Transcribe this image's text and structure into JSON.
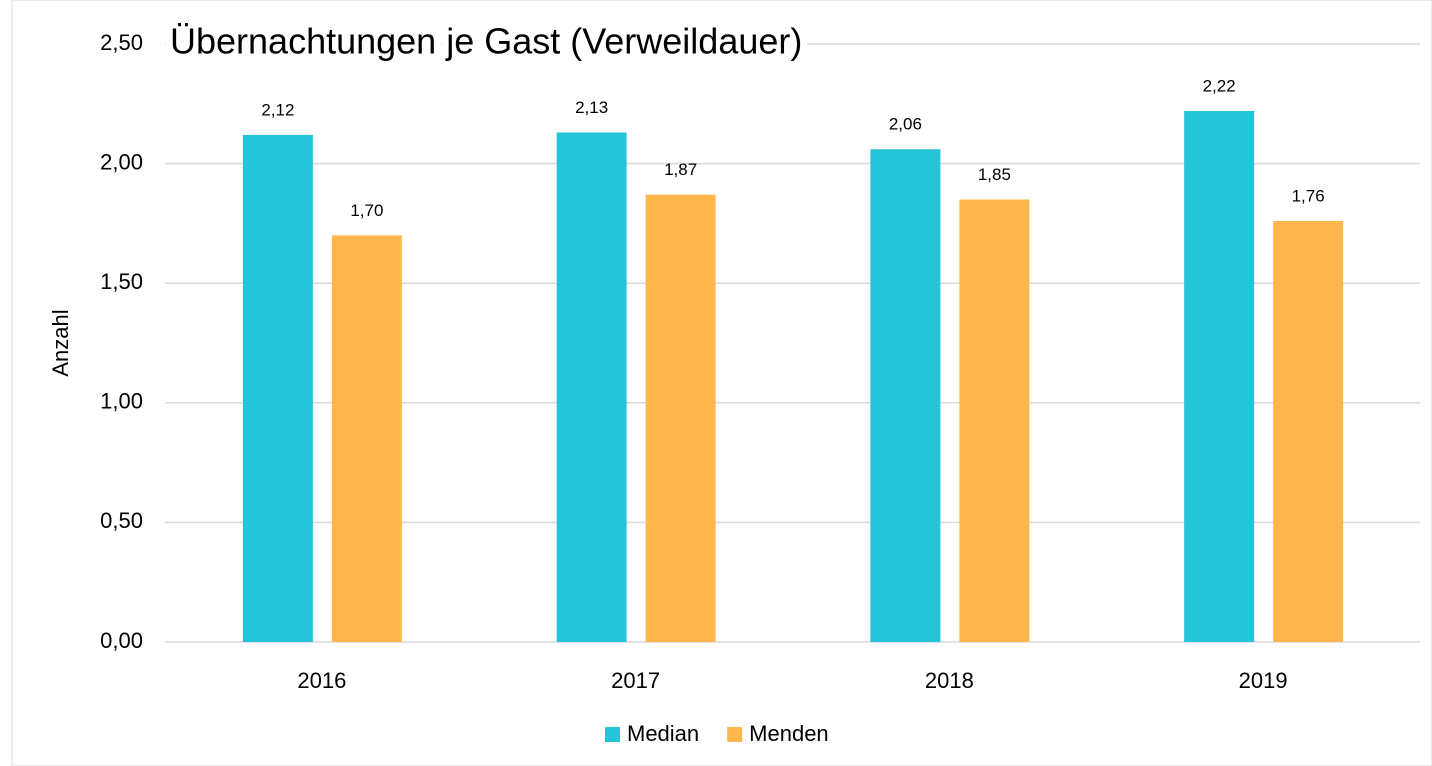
{
  "chart_data": {
    "type": "bar",
    "title": "Übernachtungen je Gast (Verweildauer)",
    "y_label": "Anzahl",
    "categories": [
      "2016",
      "2017",
      "2018",
      "2019"
    ],
    "series": [
      {
        "name": "Median",
        "color": "#26c4d8",
        "values": [
          2.12,
          2.13,
          2.06,
          2.22
        ],
        "value_labels": [
          "2,12",
          "2,13",
          "2,06",
          "2,22"
        ]
      },
      {
        "name": "Menden",
        "color": "#ffb74d",
        "values": [
          1.7,
          1.87,
          1.85,
          1.76
        ],
        "value_labels": [
          "1,70",
          "1,87",
          "1,85",
          "1,76"
        ]
      }
    ],
    "ylim": [
      0,
      2.5
    ],
    "yticks": [
      {
        "value": 0,
        "label": "0,00"
      },
      {
        "value": 0.5,
        "label": "0,50"
      },
      {
        "value": 1,
        "label": "1,00"
      },
      {
        "value": 1.5,
        "label": "1,50"
      },
      {
        "value": 2,
        "label": "2,00"
      },
      {
        "value": 2.5,
        "label": "2,50"
      }
    ],
    "grid": true,
    "legend": "bottom"
  }
}
